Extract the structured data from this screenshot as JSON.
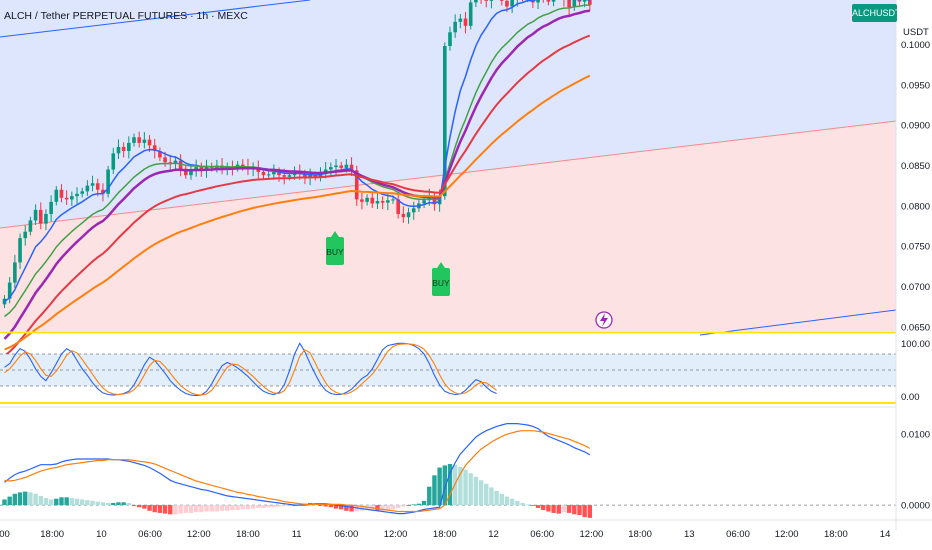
{
  "header": {
    "title": "ALCH / Tether PERPETUAL FUTURES · 1h · MEXC",
    "symbol_badge": "ALCHUSDT.P",
    "currency": "USDT"
  },
  "colors": {
    "up": "#089981",
    "down": "#f23645",
    "ema_fast": "#2962ff",
    "ema_mid": "#43a047",
    "ema_purple": "#9c27b0",
    "ema_red": "#e53945",
    "ema_orange": "#ff7f0e",
    "channel_upper_fill": "#dde6fd",
    "channel_lower_fill": "#fde2e4",
    "stoch_k": "#2962ff",
    "stoch_d": "#ff7f0e",
    "macd_line": "#2962ff",
    "signal_line": "#ff7f0e",
    "highlight": "#ffe600"
  },
  "signals": [
    {
      "label": "BUY",
      "icon": "buy-arrow-icon"
    },
    {
      "label": "BUY",
      "icon": "buy-arrow-icon"
    }
  ],
  "chart_data": [
    {
      "type": "candlestick",
      "name": "ALCHUSDT.P",
      "ylim": [
        0.0645,
        0.1055
      ],
      "y_ticks": [
        "0.1000",
        "0.0950",
        "0.0900",
        "0.0850",
        "0.0800",
        "0.0750",
        "0.0700",
        "0.0650"
      ],
      "y_tick_values": [
        0.1,
        0.095,
        0.09,
        0.085,
        0.08,
        0.075,
        0.07,
        0.065
      ],
      "x_ticks": [
        "00",
        "18:00",
        "10",
        "06:00",
        "12:00",
        "18:00",
        "11",
        "06:00",
        "12:00",
        "18:00",
        "12",
        "06:00",
        "12:00",
        "18:00",
        "13",
        "06:00",
        "12:00",
        "18:00",
        "14"
      ],
      "x_tick_index": [
        0,
        9.2,
        18.7,
        28.1,
        37.5,
        47,
        56.4,
        66,
        75.5,
        85,
        94.4,
        103.8,
        113.3,
        122.7,
        132.2,
        141.6,
        151,
        160.5,
        170
      ],
      "closes": [
        0.0685,
        0.0705,
        0.073,
        0.076,
        0.0768,
        0.0782,
        0.0795,
        0.0778,
        0.079,
        0.0805,
        0.082,
        0.081,
        0.0808,
        0.0812,
        0.0815,
        0.0818,
        0.0825,
        0.0828,
        0.082,
        0.0815,
        0.0845,
        0.0865,
        0.0873,
        0.0868,
        0.0878,
        0.0885,
        0.0878,
        0.0882,
        0.0875,
        0.0868,
        0.086,
        0.0854,
        0.0852,
        0.0856,
        0.0846,
        0.0838,
        0.0843,
        0.0848,
        0.0844,
        0.0849,
        0.0847,
        0.085,
        0.0846,
        0.0848,
        0.0847,
        0.0851,
        0.0849,
        0.0845,
        0.0848,
        0.0842,
        0.0838,
        0.0839,
        0.0842,
        0.0838,
        0.0836,
        0.0838,
        0.0842,
        0.0839,
        0.0835,
        0.0838,
        0.0836,
        0.0841,
        0.0845,
        0.0848,
        0.085,
        0.0847,
        0.0851,
        0.0844,
        0.0808,
        0.0805,
        0.081,
        0.0803,
        0.0806,
        0.0804,
        0.0807,
        0.0808,
        0.079,
        0.0786,
        0.0792,
        0.0797,
        0.0803,
        0.0807,
        0.0812,
        0.0802,
        0.0812,
        0.0998,
        0.1015,
        0.1028,
        0.1032,
        0.1023,
        0.1052,
        0.106,
        0.1057,
        0.1054,
        0.1068,
        0.1063,
        0.1054,
        0.1047,
        0.1056,
        0.1065,
        0.1058,
        0.1063,
        0.1052,
        0.1066,
        0.1061,
        0.1053,
        0.1064,
        0.1063,
        0.1055,
        0.1046,
        0.1058,
        0.1053,
        0.1059,
        0.1049
      ]
    },
    {
      "type": "line",
      "name": "Stochastic",
      "ylim": [
        -10,
        110
      ],
      "y_ticks": [
        "100.00",
        "0.00"
      ],
      "y_tick_values": [
        100,
        0
      ],
      "band": [
        20,
        80
      ],
      "k": [
        55,
        62,
        78,
        90,
        85,
        70,
        52,
        38,
        30,
        45,
        62,
        80,
        90,
        84,
        68,
        52,
        40,
        26,
        15,
        7,
        4,
        3,
        4,
        6,
        10,
        22,
        40,
        60,
        74,
        68,
        56,
        44,
        30,
        20,
        12,
        6,
        3,
        2,
        3,
        10,
        24,
        42,
        58,
        64,
        60,
        54,
        46,
        38,
        28,
        18,
        10,
        6,
        4,
        8,
        22,
        48,
        80,
        100,
        84,
        62,
        42,
        24,
        12,
        6,
        4,
        4,
        8,
        14,
        24,
        34,
        40,
        52,
        70,
        88,
        96,
        98,
        100,
        100,
        99,
        96,
        90,
        80,
        62,
        40,
        22,
        10,
        6,
        4,
        5,
        12,
        22,
        32,
        28,
        18,
        10,
        6
      ],
      "d": [
        45,
        52,
        64,
        76,
        84,
        80,
        68,
        52,
        40,
        38,
        48,
        62,
        78,
        86,
        82,
        70,
        56,
        42,
        28,
        16,
        9,
        5,
        4,
        5,
        7,
        13,
        24,
        41,
        58,
        68,
        66,
        56,
        44,
        32,
        21,
        13,
        7,
        4,
        3,
        5,
        12,
        25,
        41,
        55,
        61,
        60,
        54,
        46,
        38,
        28,
        19,
        11,
        7,
        6,
        11,
        26,
        50,
        76,
        88,
        82,
        63,
        43,
        26,
        14,
        8,
        5,
        5,
        9,
        15,
        24,
        33,
        42,
        55,
        70,
        85,
        94,
        98,
        99,
        99,
        98,
        95,
        89,
        77,
        61,
        41,
        24,
        13,
        7,
        5,
        7,
        13,
        22,
        27,
        26,
        19,
        12
      ]
    },
    {
      "type": "bar",
      "name": "MACD",
      "ylim": [
        -0.0021,
        0.0137
      ],
      "y_ticks": [
        "0.0100",
        "0.0000"
      ],
      "y_tick_values": [
        0.01,
        0
      ],
      "macd": [
        0.0032,
        0.0038,
        0.0043,
        0.0046,
        0.0048,
        0.0051,
        0.0054,
        0.0057,
        0.0057,
        0.0057,
        0.0058,
        0.0061,
        0.0063,
        0.0064,
        0.0065,
        0.0065,
        0.0065,
        0.0065,
        0.0065,
        0.0065,
        0.0065,
        0.0064,
        0.0064,
        0.0063,
        0.0062,
        0.006,
        0.0058,
        0.0056,
        0.0053,
        0.0049,
        0.0045,
        0.004,
        0.0035,
        0.0032,
        0.003,
        0.0028,
        0.0026,
        0.0024,
        0.0022,
        0.0021,
        0.0019,
        0.0017,
        0.0015,
        0.0013,
        0.0012,
        0.0011,
        0.001,
        0.0009,
        0.0008,
        0.0007,
        0.0006,
        0.0005,
        0.0004,
        0.0003,
        0.0002,
        0.0001,
        0.0,
        0.0,
        0.0,
        0.0001,
        0.0002,
        0.0002,
        0.0002,
        0.0001,
        0.0,
        -0.0001,
        -0.0002,
        -0.0003,
        -0.0004,
        -0.0005,
        -0.0006,
        -0.0007,
        -0.0008,
        -0.0009,
        -0.001,
        -0.0011,
        -0.0012,
        -0.0012,
        -0.0011,
        -0.001,
        -0.0008,
        -0.0006,
        -0.0005,
        -0.0004,
        -0.0003,
        0.0025,
        0.0045,
        0.006,
        0.0072,
        0.008,
        0.0088,
        0.0096,
        0.0101,
        0.0105,
        0.0108,
        0.0111,
        0.0113,
        0.0115,
        0.0115,
        0.0115,
        0.0114,
        0.0113,
        0.0111,
        0.0108,
        0.0102,
        0.0097,
        0.0094,
        0.0091,
        0.0088,
        0.0085,
        0.0081,
        0.0078,
        0.0075,
        0.0071
      ],
      "signal": [
        0.0035,
        0.0034,
        0.0035,
        0.0037,
        0.0039,
        0.0042,
        0.0045,
        0.0048,
        0.005,
        0.0052,
        0.0053,
        0.0055,
        0.0057,
        0.0058,
        0.0059,
        0.006,
        0.0061,
        0.0062,
        0.0063,
        0.0063,
        0.0064,
        0.0064,
        0.0064,
        0.0064,
        0.0064,
        0.0063,
        0.0062,
        0.0061,
        0.006,
        0.0058,
        0.0055,
        0.0052,
        0.0049,
        0.0046,
        0.0043,
        0.004,
        0.0037,
        0.0034,
        0.0032,
        0.003,
        0.0028,
        0.0026,
        0.0024,
        0.0022,
        0.002,
        0.0018,
        0.0017,
        0.0015,
        0.0014,
        0.0012,
        0.0011,
        0.0009,
        0.0008,
        0.0007,
        0.0005,
        0.0004,
        0.0003,
        0.0002,
        0.0001,
        0.0001,
        0.0001,
        0.0001,
        0.0001,
        0.0001,
        0.0001,
        0.0001,
        0.0,
        0.0,
        -0.0001,
        -0.0002,
        -0.0003,
        -0.0004,
        -0.0005,
        -0.0006,
        -0.0007,
        -0.0008,
        -0.0009,
        -0.0009,
        -0.0009,
        -0.0009,
        -0.0009,
        -0.0008,
        -0.0007,
        -0.0006,
        -0.0005,
        0.0,
        0.0015,
        0.003,
        0.0044,
        0.0056,
        0.0064,
        0.0072,
        0.0079,
        0.0084,
        0.0089,
        0.0093,
        0.0097,
        0.01,
        0.0102,
        0.0104,
        0.0105,
        0.0105,
        0.0105,
        0.0104,
        0.0103,
        0.0101,
        0.0099,
        0.0097,
        0.0095,
        0.0093,
        0.009,
        0.0087,
        0.0084,
        0.008
      ],
      "histogram": [
        0.0008,
        0.0012,
        0.0016,
        0.0018,
        0.0019,
        0.0018,
        0.0016,
        0.0013,
        0.001,
        0.0008,
        0.0009,
        0.0011,
        0.0011,
        0.001,
        0.0009,
        0.0008,
        0.0007,
        0.0006,
        0.0005,
        0.0004,
        0.0003,
        0.0003,
        0.0004,
        0.0004,
        0.0003,
        -0.0001,
        -0.0003,
        -0.0005,
        -0.0008,
        -0.001,
        -0.0011,
        -0.0012,
        -0.0013,
        -0.0013,
        -0.0012,
        -0.0011,
        -0.0011,
        -0.001,
        -0.001,
        -0.0009,
        -0.0009,
        -0.0009,
        -0.0008,
        -0.0008,
        -0.0007,
        -0.0007,
        -0.0006,
        -0.0006,
        -0.0005,
        -0.0004,
        -0.0004,
        -0.0003,
        -0.0003,
        -0.0002,
        -0.0001,
        -0.0001,
        0.0,
        0.0001,
        0.0002,
        0.0003,
        0.0001,
        -0.0001,
        -0.0002,
        -0.0003,
        -0.0005,
        -0.0006,
        -0.0008,
        -0.0009,
        -0.0009,
        -0.0008,
        -0.0007,
        -0.0007,
        -0.0008,
        -0.0008,
        -0.0007,
        -0.0006,
        -0.0004,
        -0.0002,
        0.0,
        0.0001,
        0.0002,
        0.0006,
        0.0026,
        0.0042,
        0.0053,
        0.0056,
        0.0058,
        0.0057,
        0.0054,
        0.005,
        0.0045,
        0.004,
        0.0035,
        0.003,
        0.0025,
        0.002,
        0.0016,
        0.0012,
        0.0009,
        0.0006,
        0.0003,
        0.0001,
        -0.0001,
        -0.0004,
        -0.0007,
        -0.0009,
        -0.0011,
        -0.0012,
        -0.001,
        -0.0011,
        -0.0013,
        -0.0014,
        -0.0017,
        -0.0018
      ]
    }
  ]
}
